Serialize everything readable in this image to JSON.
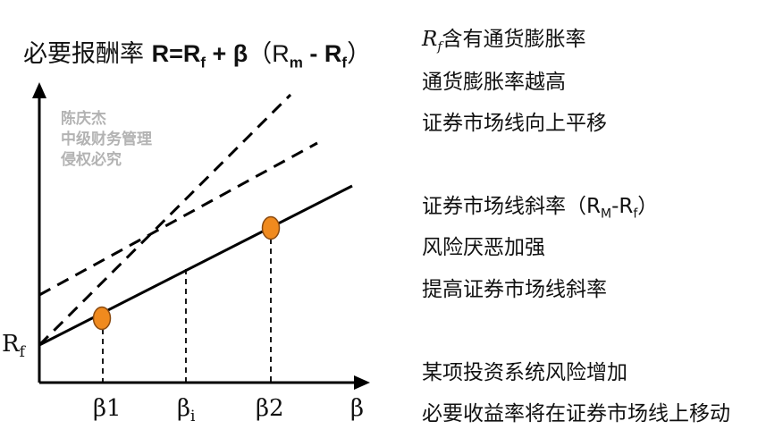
{
  "formula": {
    "cn": "必要报酬率",
    "r": "R=R",
    "f1": "f",
    "plus_beta": " + β",
    "open": "（R",
    "m": "m",
    "minus": " - R",
    "f2": "f",
    "close": "）"
  },
  "watermark": [
    "陈庆杰",
    "中级财务管理",
    "侵权必究"
  ],
  "axis": {
    "y_label": "R",
    "y_sub": "f",
    "x_label": "β",
    "ticks": [
      {
        "label": "β1",
        "sub": ""
      },
      {
        "label": "β",
        "sub": "i"
      },
      {
        "label": "β2",
        "sub": ""
      }
    ]
  },
  "colors": {
    "marker_fill": "#f08a1e",
    "marker_stroke": "#8a4a10",
    "watermark": "#b3b3b3"
  },
  "notes": {
    "g1": {
      "line1_it": "R",
      "line1_sub": "f",
      "line1_rest": "含有通货膨胀率",
      "line2": "通货膨胀率越高",
      "line3": "证券市场线向上平移"
    },
    "g2": {
      "line1_pre": "证券市场线斜率（R",
      "line1_sub1": "M",
      "line1_mid": "-R",
      "line1_sub2": "f",
      "line1_post": "）",
      "line2": "风险厌恶加强",
      "line3": "提高证券市场线斜率"
    },
    "g3": {
      "line1": "某项投资系统风险增加",
      "line2": "必要收益率将在证券市场线上移动"
    }
  }
}
